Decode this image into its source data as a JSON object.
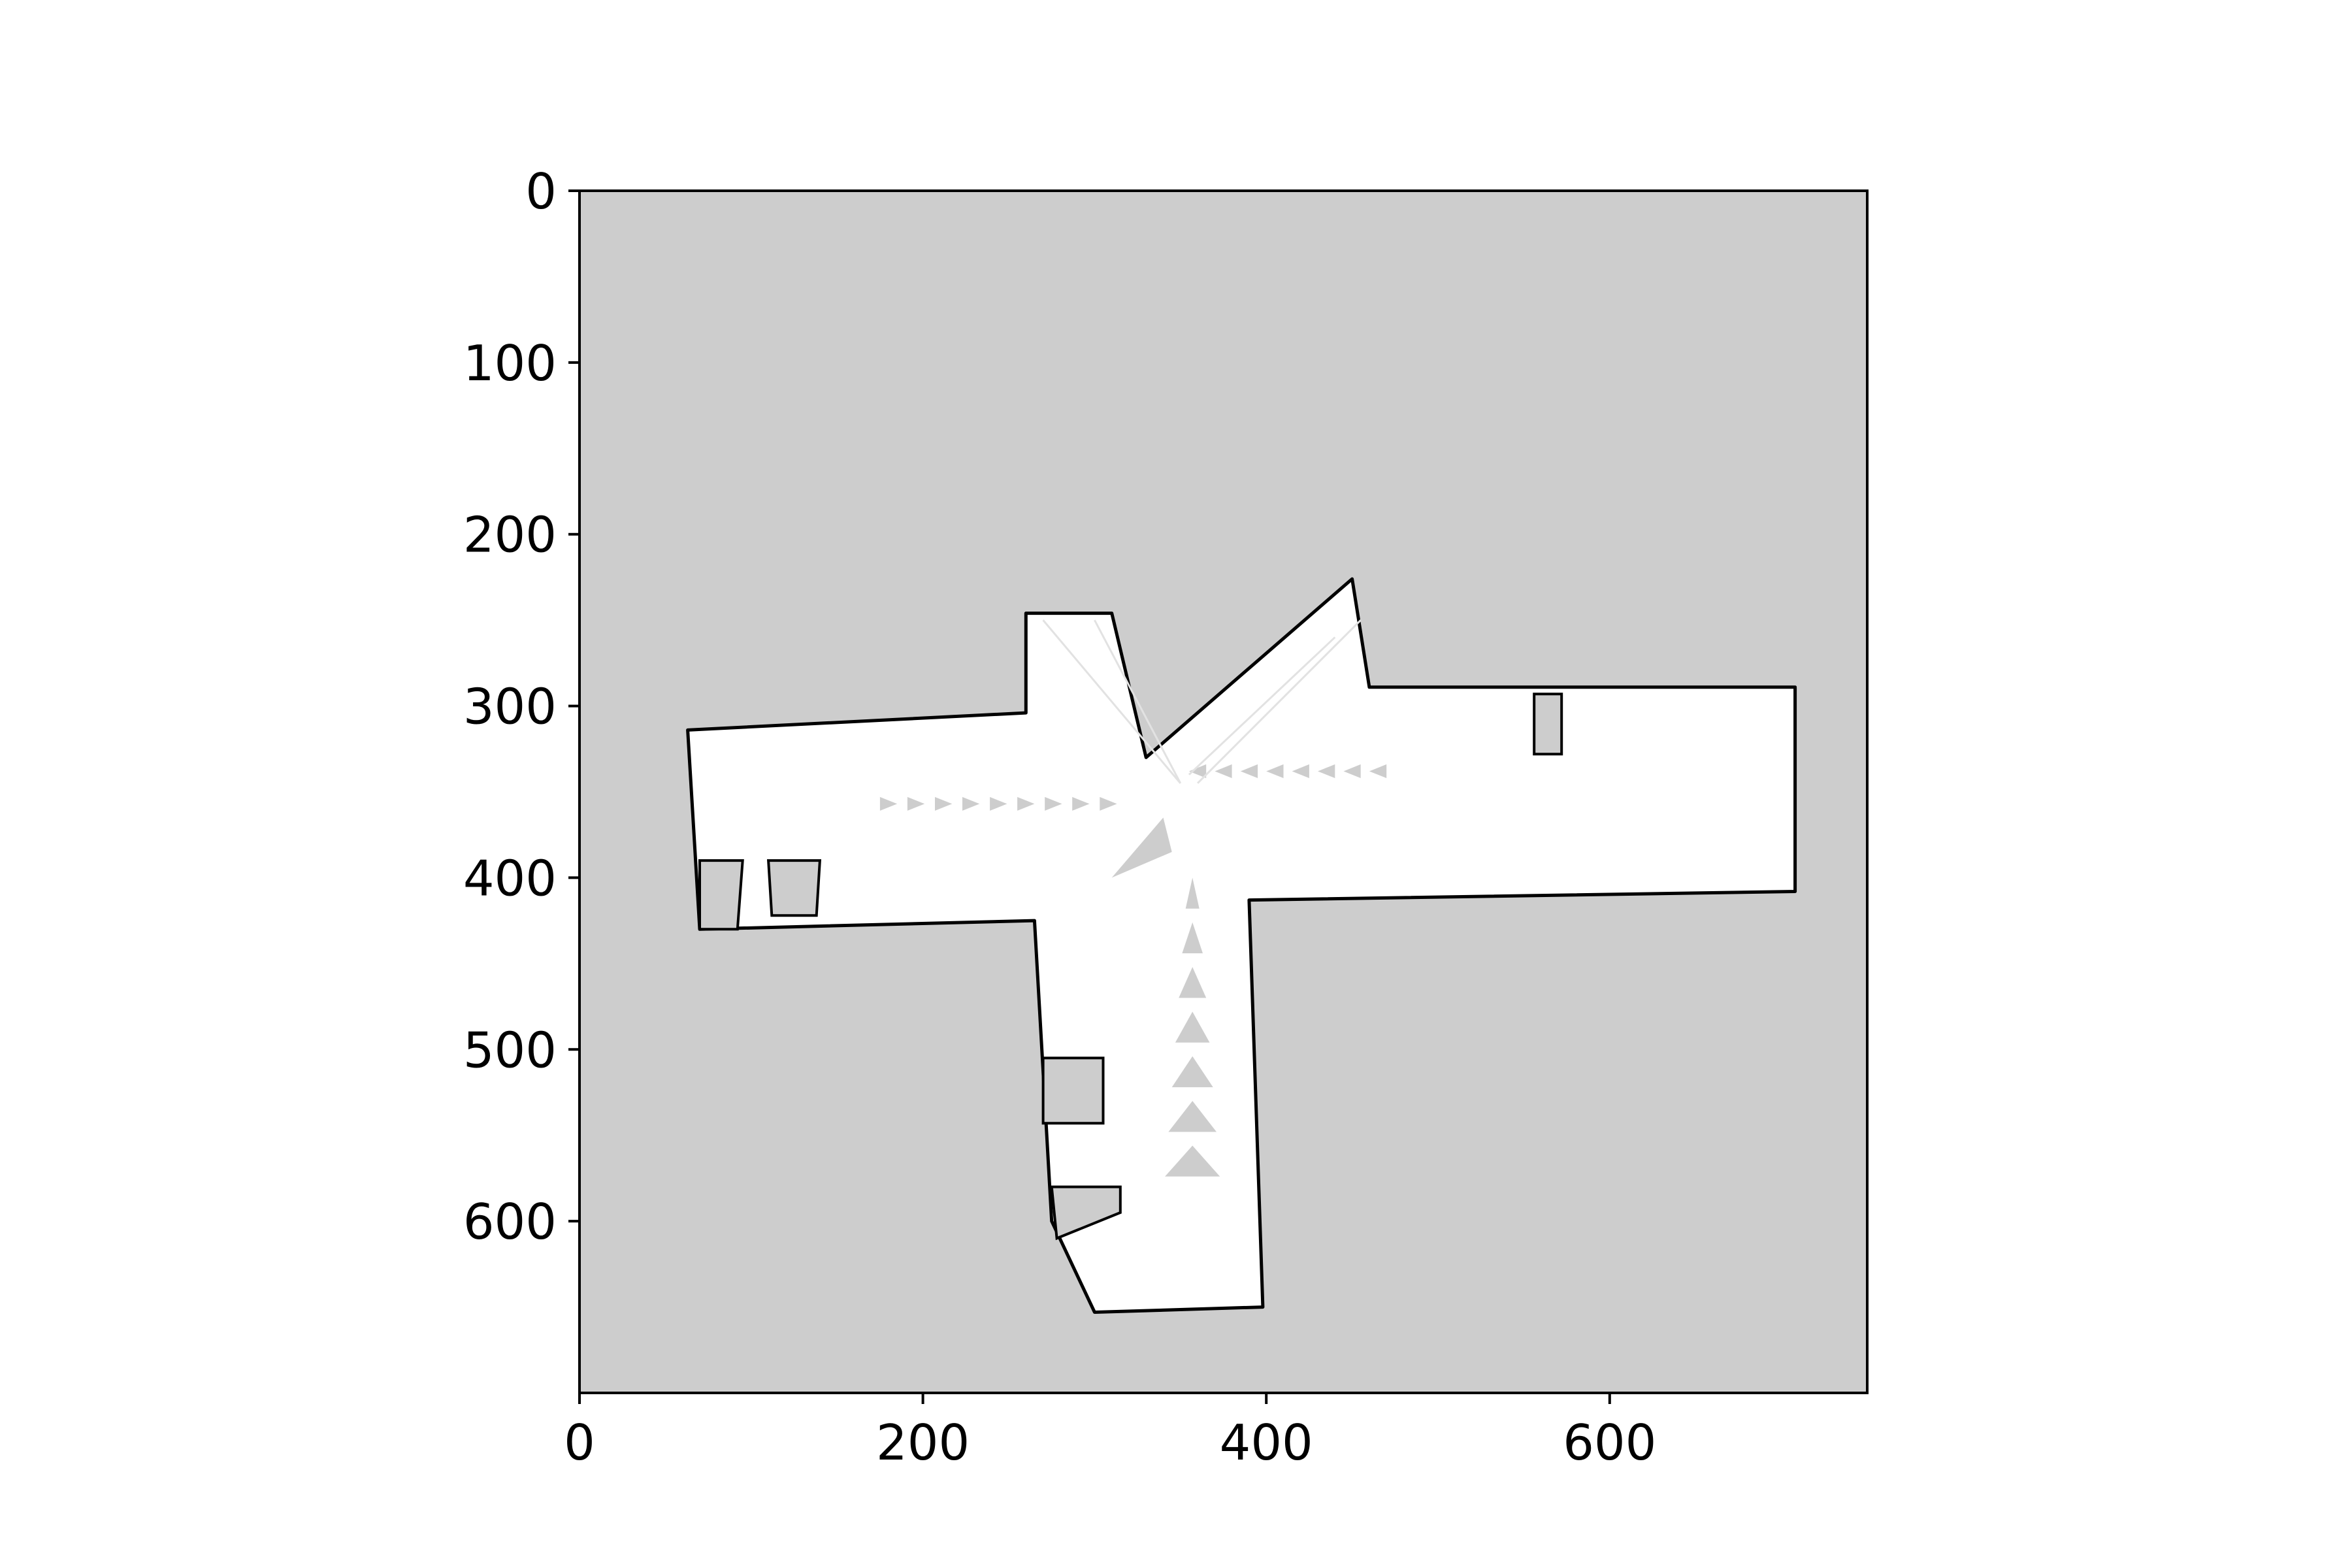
{
  "chart_data": {
    "type": "heatmap",
    "title": "",
    "xlabel": "",
    "ylabel": "",
    "xlim": [
      0,
      750
    ],
    "ylim": [
      700,
      0
    ],
    "x_ticks": [
      0,
      200,
      400,
      600
    ],
    "y_ticks": [
      0,
      100,
      200,
      300,
      400,
      500,
      600
    ],
    "x_tick_labels": [
      "0",
      "200",
      "400",
      "600"
    ],
    "y_tick_labels": [
      "0",
      "100",
      "200",
      "300",
      "400",
      "500",
      "600"
    ],
    "grid": false,
    "colors": {
      "unknown": "#cdcdcd",
      "free": "#ffffff",
      "occupied": "#000000"
    },
    "free_space": [
      [
        63,
        314
      ],
      [
        260,
        304
      ],
      [
        260,
        246
      ],
      [
        310,
        246
      ],
      [
        330,
        330
      ],
      [
        450,
        226
      ],
      [
        460,
        289
      ],
      [
        708,
        289
      ],
      [
        708,
        408
      ],
      [
        390,
        413
      ],
      [
        398,
        650
      ],
      [
        300,
        653
      ],
      [
        275,
        600
      ],
      [
        265,
        425
      ],
      [
        70,
        430
      ]
    ],
    "unknown_pockets": [
      [
        [
          556,
          293
        ],
        [
          572,
          293
        ],
        [
          572,
          328
        ],
        [
          556,
          328
        ]
      ],
      [
        [
          70,
          390
        ],
        [
          95,
          390
        ],
        [
          92,
          430
        ],
        [
          70,
          430
        ]
      ],
      [
        [
          110,
          390
        ],
        [
          140,
          390
        ],
        [
          138,
          422
        ],
        [
          112,
          422
        ]
      ],
      [
        [
          270,
          505
        ],
        [
          305,
          505
        ],
        [
          305,
          543
        ],
        [
          270,
          543
        ]
      ],
      [
        [
          275,
          580
        ],
        [
          315,
          580
        ],
        [
          315,
          595
        ],
        [
          278,
          610
        ]
      ]
    ]
  }
}
